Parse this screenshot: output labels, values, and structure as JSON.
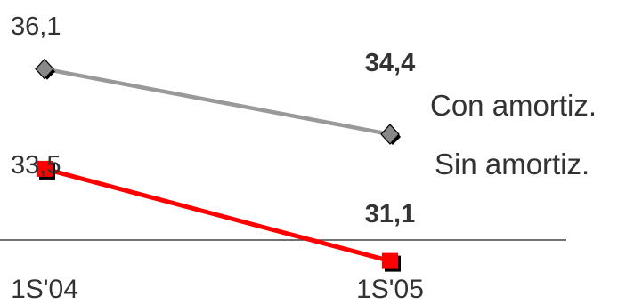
{
  "chart_data": {
    "type": "line",
    "categories": [
      "1S'04",
      "1S'05"
    ],
    "series": [
      {
        "name": "Con amortiz.",
        "values": [
          36.1,
          34.4
        ],
        "value_labels": [
          "36,1",
          "34,4"
        ],
        "color": "#999999",
        "marker": "diamond"
      },
      {
        "name": "Sin amortiz.",
        "values": [
          33.5,
          31.1
        ],
        "value_labels": [
          "33,5",
          "31,1"
        ],
        "color": "#ff0000",
        "marker": "square"
      }
    ],
    "title": "",
    "xlabel": "",
    "ylabel": "",
    "grid": false,
    "legend": "right, inline at line ends"
  }
}
